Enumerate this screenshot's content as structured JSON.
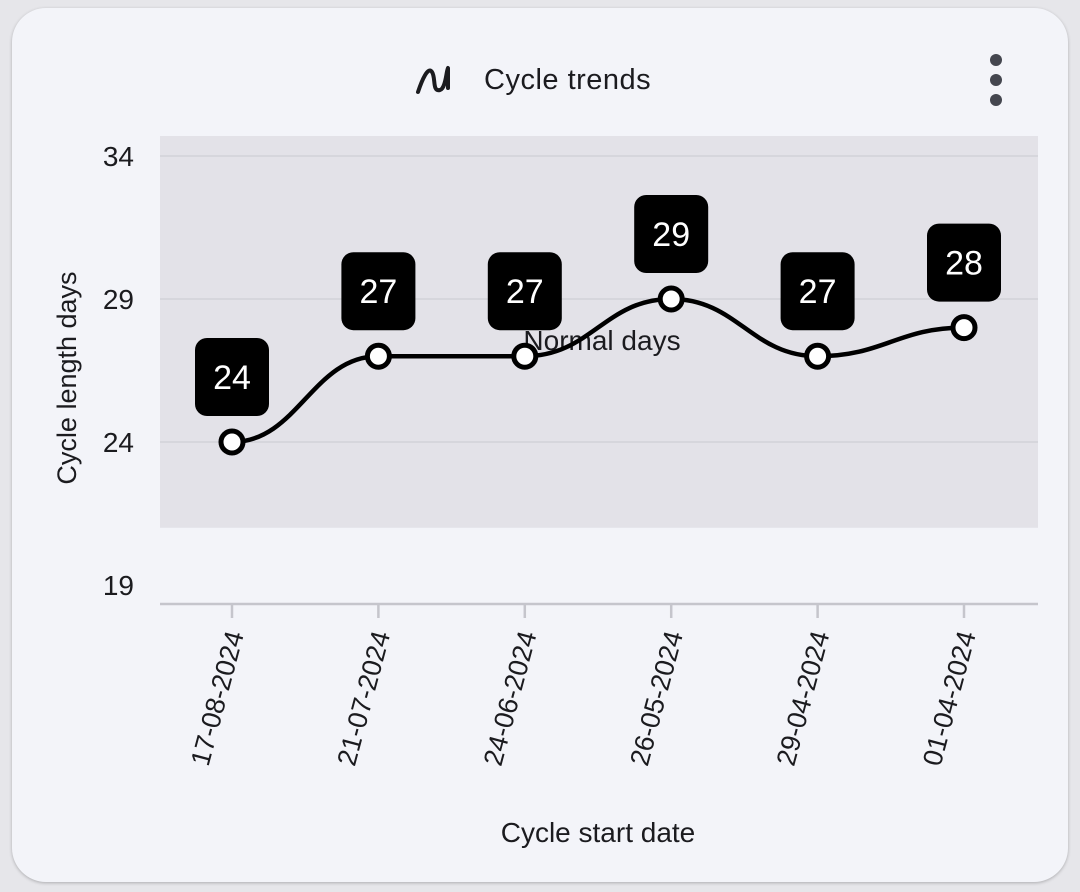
{
  "card": {
    "title": "Cycle trends",
    "title_icon": "trend-wave-icon",
    "menu_icon": "more-vert-icon"
  },
  "colors": {
    "card_background": "#f3f4f9",
    "normal_band": "#e3e2e8",
    "line": "#000000",
    "label_background": "#000000",
    "label_text": "#ffffff",
    "axis": "#c5c5cc",
    "gridline": "#d2d1d8"
  },
  "chart_data": {
    "type": "line",
    "title": "",
    "xlabel": "Cycle start date",
    "ylabel": "Cycle length days",
    "x": [
      "17-08-2024",
      "21-07-2024",
      "24-06-2024",
      "26-05-2024",
      "29-04-2024",
      "01-04-2024"
    ],
    "series": [
      {
        "values": [
          24,
          27,
          27,
          29,
          27,
          28
        ]
      }
    ],
    "ylim": [
      19,
      34
    ],
    "yticks": [
      19,
      24,
      29,
      34
    ],
    "data_labels": true,
    "smooth": true,
    "band": {
      "label": "Normal days",
      "from": 21,
      "to": 34
    },
    "grid": "horizontal",
    "legend": "none"
  }
}
